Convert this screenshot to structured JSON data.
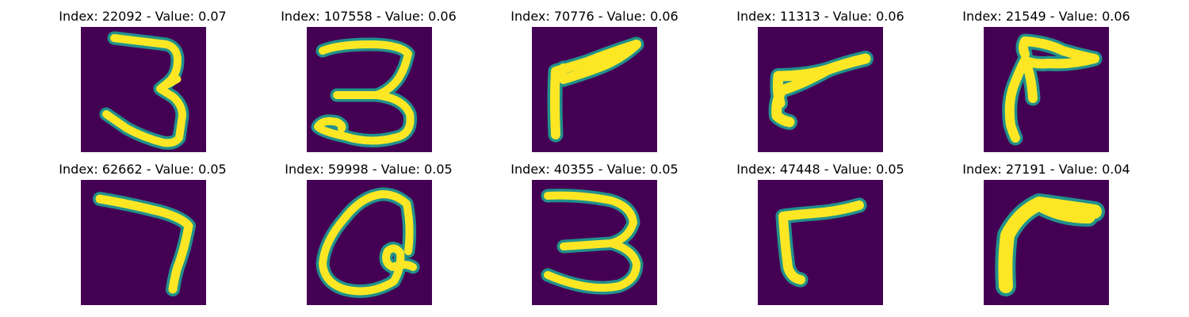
{
  "figure": {
    "background_color": "#440154",
    "stroke_edge_color": "#21918c",
    "stroke_core_color": "#fde725",
    "panels": [
      {
        "title": "Index: 22092 - Value: 0.07",
        "index": 22092,
        "value": 0.07,
        "glyph": "3"
      },
      {
        "title": "Index: 107558 - Value: 0.06",
        "index": 107558,
        "value": 0.06,
        "glyph": "3"
      },
      {
        "title": "Index: 70776 - Value: 0.06",
        "index": 70776,
        "value": 0.06,
        "glyph": "7"
      },
      {
        "title": "Index: 11313 - Value: 0.06",
        "index": 11313,
        "value": 0.06,
        "glyph": "7"
      },
      {
        "title": "Index: 21549 - Value: 0.06",
        "index": 21549,
        "value": 0.06,
        "glyph": "7"
      },
      {
        "title": "Index: 62662 - Value: 0.05",
        "index": 62662,
        "value": 0.05,
        "glyph": "7"
      },
      {
        "title": "Index: 59998 - Value: 0.05",
        "index": 59998,
        "value": 0.05,
        "glyph": "loop"
      },
      {
        "title": "Index: 40355 - Value: 0.05",
        "index": 40355,
        "value": 0.05,
        "glyph": "3"
      },
      {
        "title": "Index: 47448 - Value: 0.05",
        "index": 47448,
        "value": 0.05,
        "glyph": "7"
      },
      {
        "title": "Index: 27191 - Value: 0.04",
        "index": 27191,
        "value": 0.04,
        "glyph": "7"
      }
    ]
  }
}
